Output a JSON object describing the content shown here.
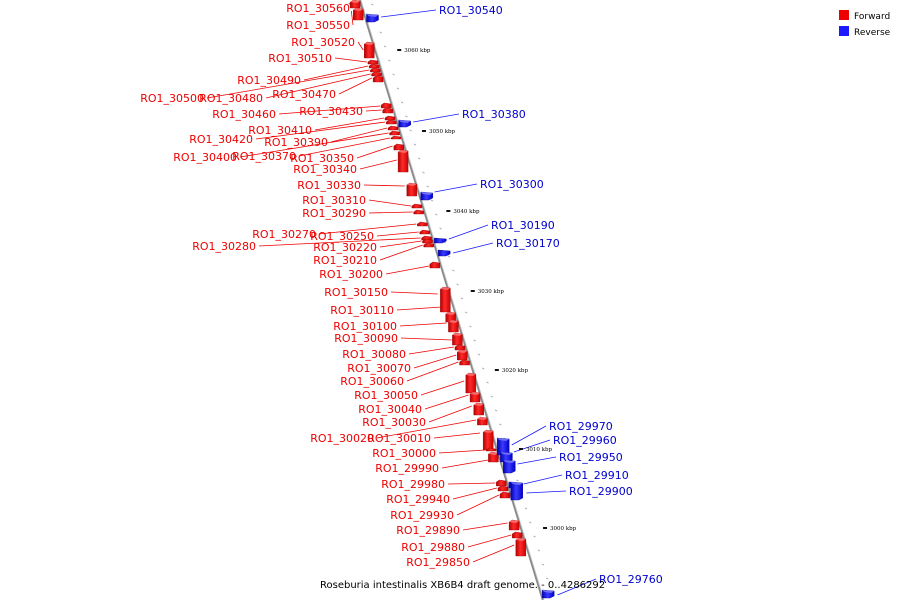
{
  "caption": "Roseburia intestinalis XB6B4 draft genome. - 0..4286292",
  "legend": [
    {
      "label": "Forward",
      "color": "#ee0000"
    },
    {
      "label": "Reverse",
      "color": "#1a1aff"
    }
  ],
  "colors": {
    "forward": "#ee0000",
    "reverse": "#1a1aff",
    "axis": "#888888"
  },
  "ticks": [
    "3060 kbp",
    "3050 kbp",
    "3040 kbp",
    "3030 kbp",
    "3020 kbp",
    "3010 kbp",
    "3000 kbp"
  ],
  "forward_genes": [
    "RO1_30560",
    "RO1_30550",
    "RO1_30520",
    "RO1_30510",
    "RO1_30490",
    "RO1_30500",
    "RO1_30480",
    "RO1_30470",
    "RO1_30460",
    "RO1_30430",
    "RO1_30410",
    "RO1_30420",
    "RO1_30390",
    "RO1_30400",
    "RO1_30370",
    "RO1_30350",
    "RO1_30340",
    "RO1_30330",
    "RO1_30310",
    "RO1_30290",
    "RO1_30270",
    "RO1_30250",
    "RO1_30280",
    "RO1_30220",
    "RO1_30210",
    "RO1_30200",
    "RO1_30150",
    "RO1_30110",
    "RO1_30100",
    "RO1_30090",
    "RO1_30080",
    "RO1_30070",
    "RO1_30060",
    "RO1_30050",
    "RO1_30040",
    "RO1_30030",
    "RO1_30020",
    "RO1_30010",
    "RO1_30000",
    "RO1_29990",
    "RO1_29980",
    "RO1_29940",
    "RO1_29930",
    "RO1_29890",
    "RO1_29880",
    "RO1_29850"
  ],
  "reverse_genes": [
    "RO1_30540",
    "RO1_30380",
    "RO1_30300",
    "RO1_30190",
    "RO1_30170",
    "RO1_29970",
    "RO1_29960",
    "RO1_29950",
    "RO1_29910",
    "RO1_29900",
    "RO1_29760"
  ]
}
